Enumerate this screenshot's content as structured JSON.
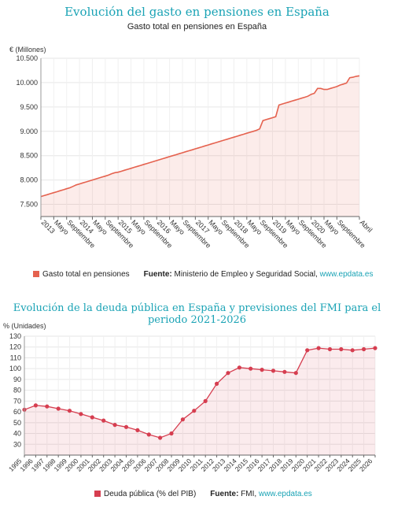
{
  "chart_data": [
    {
      "type": "area",
      "title": "Evolución del gasto en pensiones en España",
      "subtitle": "Gasto total en pensiones en España",
      "ylabel": "€ (Millones)",
      "ylim": [
        7250,
        10500
      ],
      "yticks": [
        "10.500",
        "10.000",
        "9.500",
        "9.000",
        "8.500",
        "8.000",
        "7.500"
      ],
      "ytick_values": [
        10500,
        10000,
        9500,
        9000,
        8500,
        8000,
        7500
      ],
      "xtick_labels": [
        "2013",
        "Mayo",
        "Septiembre",
        "2014",
        "Mayo",
        "Septiembre",
        "2015",
        "Mayo",
        "Septiembre",
        "2016",
        "Mayo",
        "Septiembre",
        "2017",
        "Mayo",
        "Septiembre",
        "2018",
        "Mayo",
        "Septiembre",
        "2019",
        "Mayo",
        "Septiembre",
        "2020",
        "Mayo",
        "Septiembre",
        "Abril"
      ],
      "xtick_positions": [
        0,
        4,
        8,
        12,
        16,
        20,
        24,
        28,
        32,
        36,
        40,
        44,
        48,
        52,
        56,
        60,
        64,
        68,
        72,
        76,
        80,
        84,
        88,
        92,
        99
      ],
      "x_count": 100,
      "color": "#e5624f",
      "series": [
        {
          "name": "Gasto total en pensiones",
          "values": [
            7660,
            7680,
            7700,
            7720,
            7740,
            7760,
            7780,
            7800,
            7820,
            7840,
            7870,
            7900,
            7920,
            7940,
            7960,
            7980,
            8000,
            8020,
            8040,
            8060,
            8080,
            8100,
            8130,
            8150,
            8160,
            8180,
            8200,
            8220,
            8240,
            8260,
            8280,
            8300,
            8320,
            8340,
            8360,
            8380,
            8400,
            8420,
            8440,
            8460,
            8480,
            8500,
            8520,
            8540,
            8560,
            8580,
            8600,
            8620,
            8640,
            8660,
            8680,
            8700,
            8720,
            8740,
            8760,
            8780,
            8800,
            8820,
            8840,
            8860,
            8880,
            8900,
            8920,
            8940,
            8960,
            8980,
            9000,
            9020,
            9050,
            9220,
            9240,
            9260,
            9280,
            9300,
            9540,
            9560,
            9580,
            9600,
            9620,
            9640,
            9660,
            9680,
            9700,
            9720,
            9760,
            9780,
            9880,
            9880,
            9860,
            9860,
            9880,
            9900,
            9920,
            9950,
            9970,
            9990,
            10100,
            10110,
            10130,
            10140
          ]
        }
      ],
      "legend": "bottom",
      "source_label": "Fuente:",
      "source_text": "Ministerio de Empleo y Seguridad Social, ",
      "source_link": "www.epdata.es"
    },
    {
      "type": "area",
      "title": "Evolución de la deuda pública en España y previsiones del FMI para el periodo 2021-2026",
      "ylabel": "% (Unidades)",
      "ylim": [
        20,
        130
      ],
      "yticks": [
        "130",
        "120",
        "110",
        "100",
        "90",
        "80",
        "70",
        "60",
        "50",
        "40",
        "30"
      ],
      "ytick_values": [
        130,
        120,
        110,
        100,
        90,
        80,
        70,
        60,
        50,
        40,
        30
      ],
      "x": [
        "1995",
        "1996",
        "1997",
        "1998",
        "1999",
        "2000",
        "2001",
        "2002",
        "2003",
        "2004",
        "2005",
        "2006",
        "2007",
        "2008",
        "2009",
        "2010",
        "2011",
        "2012",
        "2013",
        "2014",
        "2015",
        "2016",
        "2017",
        "2018",
        "2019",
        "2020",
        "2021",
        "2022",
        "2023",
        "2024",
        "2025",
        "2026"
      ],
      "color": "#d63e50",
      "series": [
        {
          "name": "Deuda pública (% del PIB)",
          "values": [
            62,
            66,
            65,
            63,
            61,
            58,
            55,
            52,
            48,
            46,
            43,
            39,
            36,
            40,
            53,
            61,
            70,
            86,
            96,
            101,
            100,
            99,
            98,
            97,
            96,
            117,
            119,
            118,
            118,
            117,
            118,
            119
          ]
        }
      ],
      "legend": "bottom",
      "source_label": "Fuente:",
      "source_text": "FMI, ",
      "source_link": "www.epdata.es"
    }
  ]
}
